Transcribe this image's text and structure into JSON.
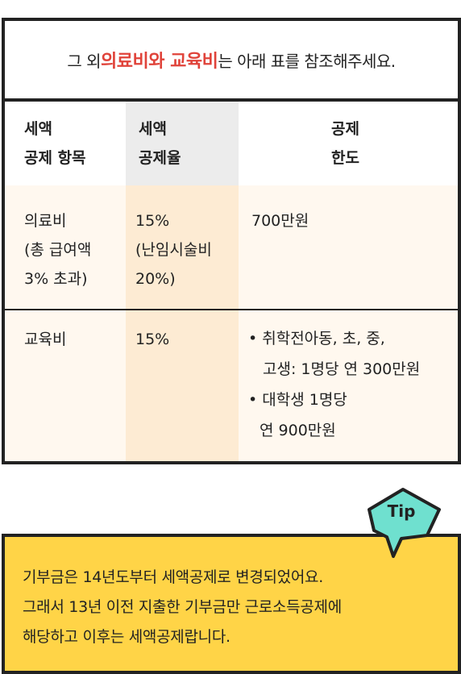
{
  "intro": {
    "prefix": "그 외 ",
    "highlight": "의료비와 교육비",
    "suffix": "는 아래 표를 참조해주세요."
  },
  "table": {
    "headers": {
      "item": [
        "세액",
        "공제 항목"
      ],
      "rate": [
        "세액",
        "공제율"
      ],
      "limit": [
        "공제",
        "한도"
      ]
    },
    "rows": [
      {
        "item": [
          "의료비",
          "(총 급여액",
          "3% 초과)"
        ],
        "rate": [
          "15%",
          "(난임시술비",
          "20%)"
        ],
        "limit": "700만원"
      },
      {
        "item": [
          "교육비"
        ],
        "rate": [
          "15%"
        ],
        "limit_bullets": [
          [
            "• 취학전아동, 초, 중,",
            "고생: 1명당 연 300만원"
          ],
          [
            "• 대학생 1명당",
            "연 900만원"
          ]
        ]
      }
    ]
  },
  "tip": {
    "badge": "Tip",
    "lines": [
      "기부금은 14년도부터 세액공제로 변경되었어요.",
      "그래서 13년 이전 지출한 기부금만 근로소득공제에",
      "해당하고 이후는 세액공제랍니다."
    ]
  },
  "colors": {
    "highlight": "#e0433a",
    "header_rate_bg": "#ececec",
    "row_bg": "#fff8ef",
    "rate_col_bg": "#fdebd3",
    "tip_bg": "#ffd447",
    "badge_bg": "#6fe0cf",
    "border": "#222222"
  }
}
